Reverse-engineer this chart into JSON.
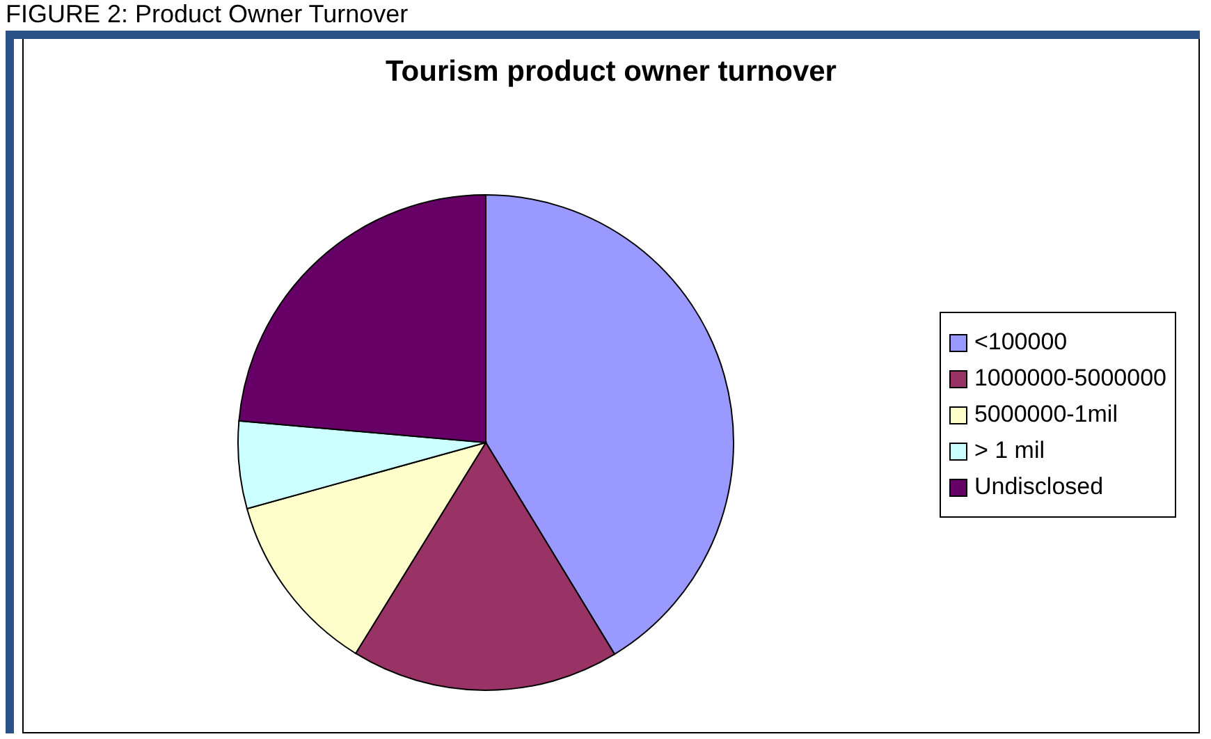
{
  "chart_data": {
    "type": "pie",
    "title": "Tourism product owner turnover",
    "annotations": [
      "FIGURE 2: Product Owner Turnover"
    ],
    "categories": [
      "<100000",
      "1000000-5000000",
      "5000000-1mil",
      "> 1 mil",
      "Undisclosed"
    ],
    "values": [
      41.3,
      17.5,
      11.9,
      5.7,
      23.6
    ],
    "colors": [
      "#9999ff",
      "#993366",
      "#ffffcc",
      "#ccffff",
      "#660066"
    ],
    "legend": "right"
  }
}
